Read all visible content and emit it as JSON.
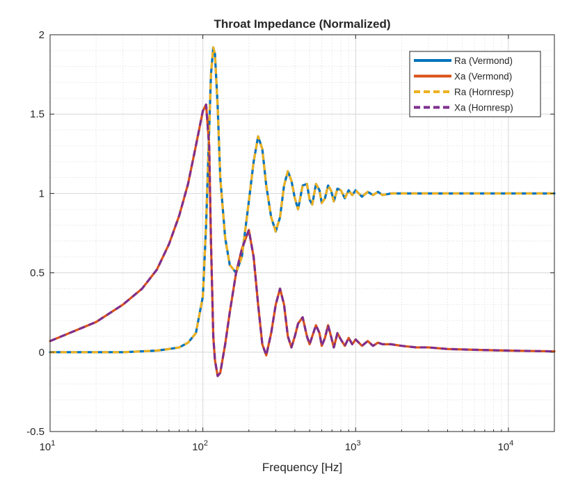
{
  "chart_data": {
    "type": "line",
    "title": "Throat Impedance (Normalized)",
    "xlabel": "Frequency [Hz]",
    "ylabel": "",
    "xscale": "log",
    "xlim": [
      10,
      20000
    ],
    "ylim": [
      -0.5,
      2
    ],
    "grid": true,
    "minor_grid": true,
    "legend_position": "top-right",
    "y_ticks": [
      "-0.5",
      "0",
      "0.5",
      "1",
      "1.5",
      "2"
    ],
    "x_ticks": [
      {
        "base": "10",
        "exp": "1",
        "value": 10
      },
      {
        "base": "10",
        "exp": "2",
        "value": 100
      },
      {
        "base": "10",
        "exp": "3",
        "value": 1000
      },
      {
        "base": "10",
        "exp": "4",
        "value": 10000
      }
    ],
    "x": [
      10,
      20,
      30,
      40,
      50,
      60,
      70,
      80,
      90,
      100,
      105,
      110,
      113,
      117,
      120,
      125,
      130,
      140,
      150,
      165,
      180,
      200,
      215,
      230,
      245,
      260,
      280,
      300,
      320,
      340,
      360,
      380,
      400,
      420,
      450,
      480,
      500,
      520,
      550,
      580,
      600,
      630,
      660,
      690,
      720,
      760,
      800,
      850,
      900,
      950,
      1000,
      1100,
      1200,
      1300,
      1400,
      1500,
      1700,
      2000,
      2500,
      3000,
      4000,
      6000,
      10000,
      20000
    ],
    "series": [
      {
        "name": "Ra (Vermond)",
        "color": "#0072BD",
        "style": "solid",
        "values": [
          0.0,
          0.0,
          0.0,
          0.005,
          0.01,
          0.02,
          0.03,
          0.06,
          0.12,
          0.35,
          0.8,
          1.4,
          1.75,
          1.92,
          1.88,
          1.55,
          1.1,
          0.72,
          0.55,
          0.5,
          0.6,
          0.95,
          1.2,
          1.36,
          1.28,
          1.05,
          0.85,
          0.76,
          0.85,
          1.05,
          1.14,
          1.08,
          0.97,
          0.9,
          1.05,
          1.06,
          0.96,
          0.93,
          1.06,
          1.02,
          0.94,
          0.97,
          1.05,
          1.02,
          0.95,
          1.03,
          1.02,
          0.97,
          1.02,
          0.99,
          1.02,
          0.98,
          1.01,
          0.99,
          1.01,
          0.99,
          1.0,
          1.0,
          1.0,
          1.0,
          1.0,
          1.0,
          1.0,
          1.0
        ]
      },
      {
        "name": "Xa (Vermond)",
        "color": "#D95319",
        "style": "solid",
        "values": [
          0.07,
          0.19,
          0.3,
          0.4,
          0.52,
          0.68,
          0.86,
          1.06,
          1.3,
          1.52,
          1.56,
          1.3,
          0.7,
          0.1,
          -0.05,
          -0.15,
          -0.13,
          0.05,
          0.25,
          0.5,
          0.65,
          0.77,
          0.6,
          0.3,
          0.05,
          -0.02,
          0.12,
          0.3,
          0.4,
          0.3,
          0.1,
          0.03,
          0.1,
          0.18,
          0.22,
          0.1,
          0.05,
          0.1,
          0.17,
          0.12,
          0.04,
          0.09,
          0.17,
          0.1,
          0.03,
          0.12,
          0.08,
          0.04,
          0.09,
          0.05,
          0.08,
          0.04,
          0.07,
          0.04,
          0.06,
          0.05,
          0.05,
          0.04,
          0.03,
          0.03,
          0.02,
          0.015,
          0.01,
          0.005
        ]
      },
      {
        "name": "Ra (Hornresp)",
        "color": "#EDB120",
        "style": "dashed",
        "values": [
          0.0,
          0.0,
          0.0,
          0.005,
          0.01,
          0.02,
          0.03,
          0.06,
          0.12,
          0.35,
          0.8,
          1.4,
          1.75,
          1.92,
          1.88,
          1.55,
          1.1,
          0.72,
          0.55,
          0.5,
          0.6,
          0.95,
          1.2,
          1.36,
          1.28,
          1.05,
          0.85,
          0.76,
          0.85,
          1.05,
          1.14,
          1.08,
          0.97,
          0.9,
          1.05,
          1.06,
          0.96,
          0.93,
          1.06,
          1.02,
          0.94,
          0.97,
          1.05,
          1.02,
          0.95,
          1.03,
          1.02,
          0.97,
          1.02,
          0.99,
          1.02,
          0.98,
          1.01,
          0.99,
          1.01,
          0.99,
          1.0,
          1.0,
          1.0,
          1.0,
          1.0,
          1.0,
          1.0,
          1.0
        ]
      },
      {
        "name": "Xa (Hornresp)",
        "color": "#7E2F8E",
        "style": "dashed",
        "values": [
          0.07,
          0.19,
          0.3,
          0.4,
          0.52,
          0.68,
          0.86,
          1.06,
          1.3,
          1.52,
          1.56,
          1.3,
          0.7,
          0.1,
          -0.05,
          -0.15,
          -0.13,
          0.05,
          0.25,
          0.5,
          0.65,
          0.77,
          0.6,
          0.3,
          0.05,
          -0.02,
          0.12,
          0.3,
          0.4,
          0.3,
          0.1,
          0.03,
          0.1,
          0.18,
          0.22,
          0.1,
          0.05,
          0.1,
          0.17,
          0.12,
          0.04,
          0.09,
          0.17,
          0.1,
          0.03,
          0.12,
          0.08,
          0.04,
          0.09,
          0.05,
          0.08,
          0.04,
          0.07,
          0.04,
          0.06,
          0.05,
          0.05,
          0.04,
          0.03,
          0.03,
          0.02,
          0.015,
          0.01,
          0.005
        ]
      }
    ]
  }
}
